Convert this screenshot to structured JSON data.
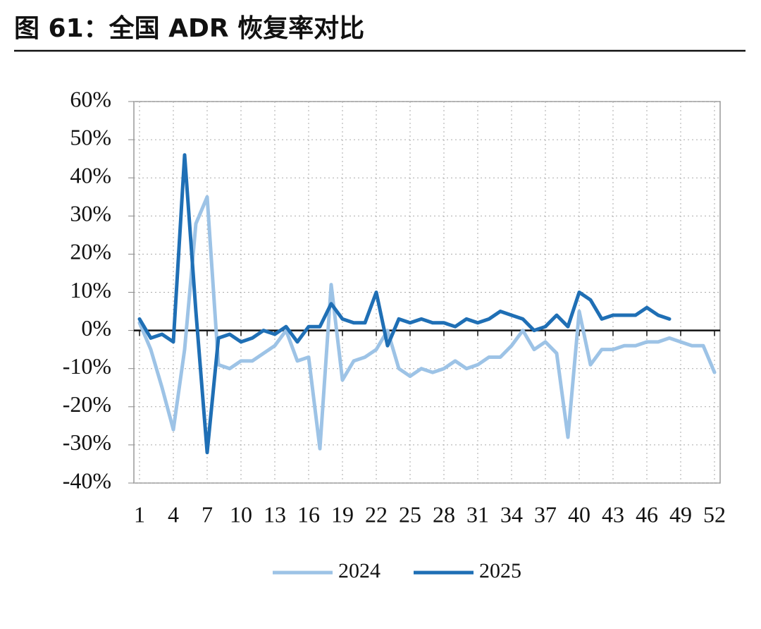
{
  "chart_data": {
    "type": "line",
    "title": "图 61：全国 ADR 恢复率对比",
    "x": [
      1,
      2,
      3,
      4,
      5,
      6,
      7,
      8,
      9,
      10,
      11,
      12,
      13,
      14,
      15,
      16,
      17,
      18,
      19,
      20,
      21,
      22,
      23,
      24,
      25,
      26,
      27,
      28,
      29,
      30,
      31,
      32,
      33,
      34,
      35,
      36,
      37,
      38,
      39,
      40,
      41,
      42,
      43,
      44,
      45,
      46,
      47,
      48,
      49,
      50,
      51,
      52
    ],
    "xlim": [
      0.5,
      52.5
    ],
    "xticks": [
      1,
      4,
      7,
      10,
      13,
      16,
      19,
      22,
      25,
      28,
      31,
      34,
      37,
      40,
      43,
      46,
      49,
      52
    ],
    "ylim": [
      -40,
      60
    ],
    "yticks": [
      {
        "value": 60,
        "label": "60%"
      },
      {
        "value": 50,
        "label": "50%"
      },
      {
        "value": 40,
        "label": "40%"
      },
      {
        "value": 30,
        "label": "30%"
      },
      {
        "value": 20,
        "label": "20%"
      },
      {
        "value": 10,
        "label": "10%"
      },
      {
        "value": 0,
        "label": "0%"
      },
      {
        "value": -10,
        "label": "-10%"
      },
      {
        "value": -20,
        "label": "-20%"
      },
      {
        "value": -30,
        "label": "-30%"
      },
      {
        "value": -40,
        "label": "-40%"
      }
    ],
    "grid": true,
    "legend": "bottom",
    "series": [
      {
        "name": "2024",
        "color": "#9dc3e6",
        "values": [
          2,
          -5,
          -15,
          -26,
          -5,
          28,
          35,
          -9,
          -10,
          -8,
          -8,
          -6,
          -4,
          0,
          -8,
          -7,
          -31,
          12,
          -13,
          -8,
          -7,
          -5,
          0,
          -10,
          -12,
          -10,
          -11,
          -10,
          -8,
          -10,
          -9,
          -7,
          -7,
          -4,
          0,
          -5,
          -3,
          -6,
          -28,
          5,
          -9,
          -5,
          -5,
          -4,
          -4,
          -3,
          -3,
          -2,
          -3,
          -4,
          -4,
          -11
        ]
      },
      {
        "name": "2025",
        "color": "#1f6fb5",
        "values": [
          3,
          -2,
          -1,
          -3,
          46,
          5,
          -32,
          -2,
          -1,
          -3,
          -2,
          0,
          -1,
          1,
          -3,
          1,
          1,
          7,
          3,
          2,
          2,
          10,
          -4,
          3,
          2,
          3,
          2,
          2,
          1,
          3,
          2,
          3,
          5,
          4,
          3,
          0,
          1,
          4,
          1,
          10,
          8,
          3,
          4,
          4,
          4,
          6,
          4,
          3,
          null,
          null,
          null,
          null
        ]
      }
    ]
  }
}
